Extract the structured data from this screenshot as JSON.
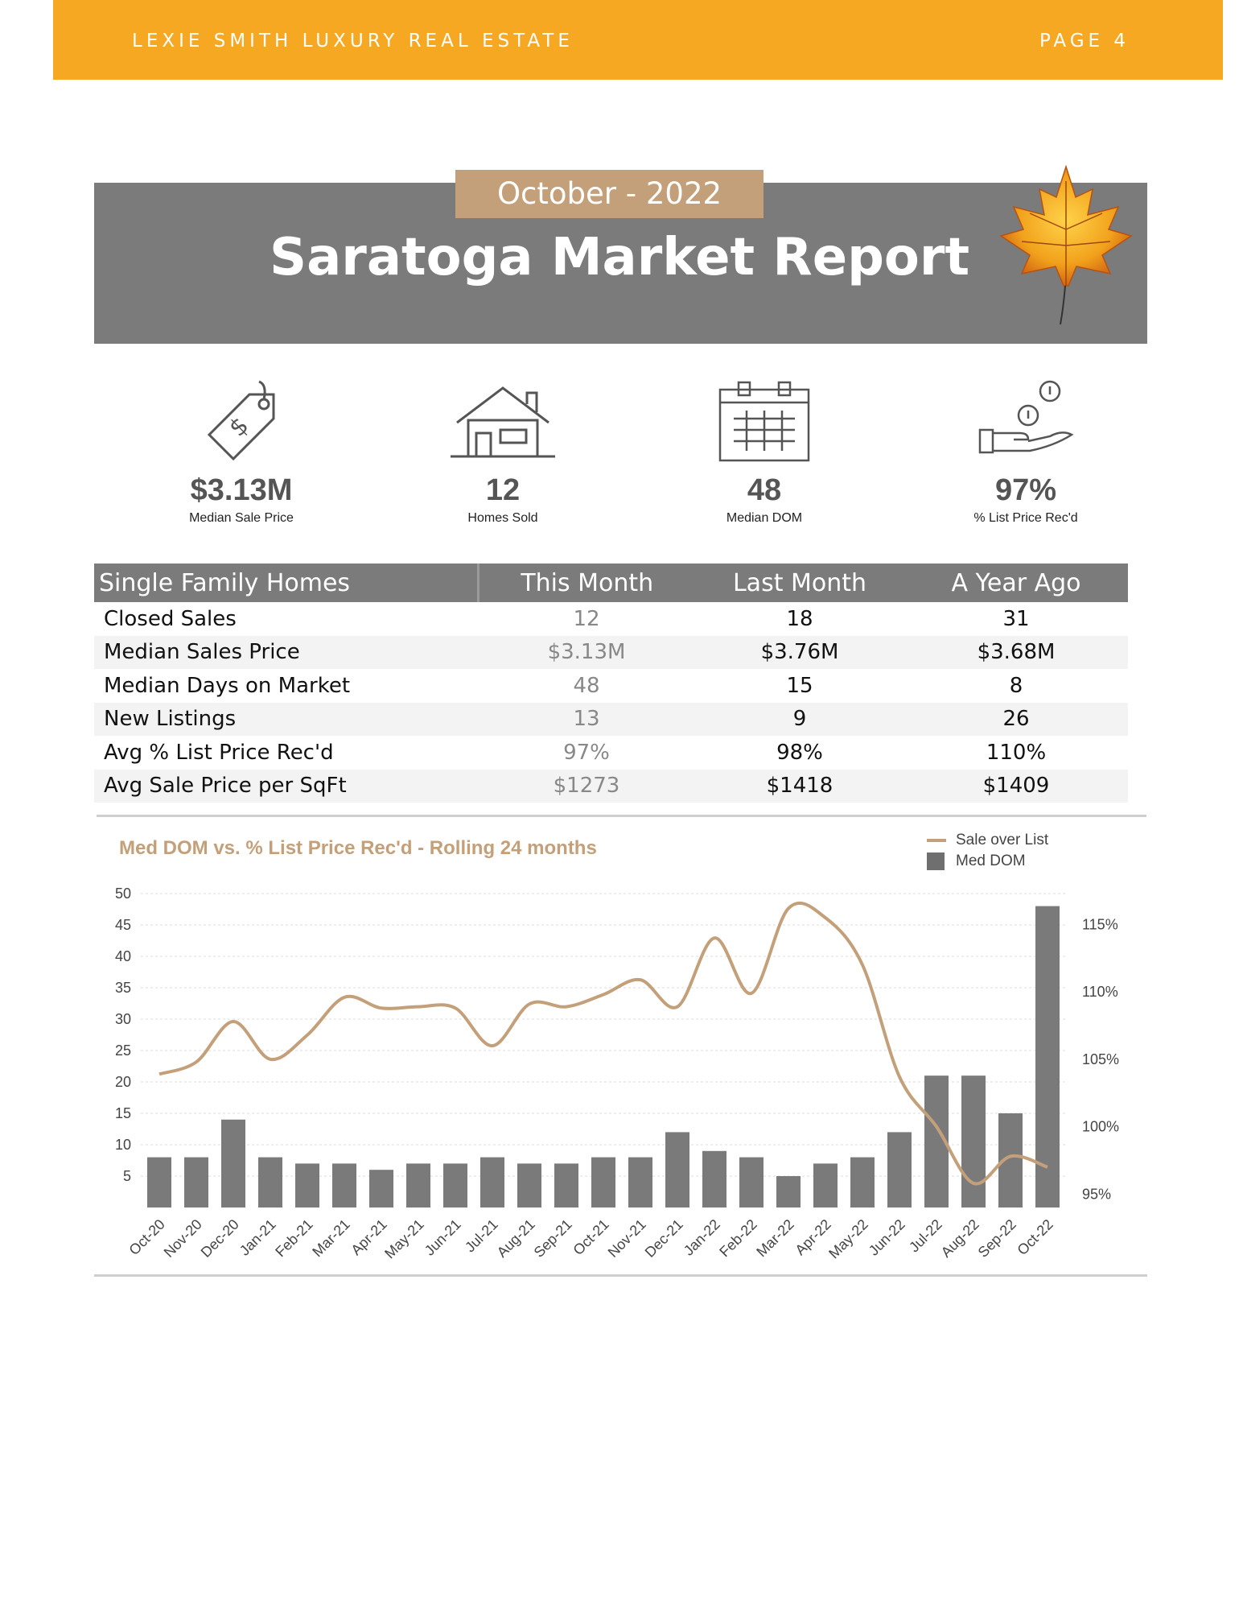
{
  "header": {
    "brand": "LEXIE SMITH LUXURY REAL ESTATE",
    "page": "PAGE 4"
  },
  "banner": {
    "date": "October - 2022",
    "title": "Saratoga Market Report"
  },
  "stats": [
    {
      "value": "$3.13M",
      "label": "Median Sale Price",
      "icon": "price-tag-icon"
    },
    {
      "value": "12",
      "label": "Homes Sold",
      "icon": "house-icon"
    },
    {
      "value": "48",
      "label": "Median DOM",
      "icon": "calendar-icon"
    },
    {
      "value": "97%",
      "label": "% List Price Rec'd",
      "icon": "hand-coins-icon"
    }
  ],
  "table": {
    "headers": [
      "Single Family Homes",
      "This Month",
      "Last Month",
      "A Year Ago"
    ],
    "rows": [
      [
        "Closed Sales",
        "12",
        "18",
        "31"
      ],
      [
        "Median Sales Price",
        "$3.13M",
        "$3.76M",
        "$3.68M"
      ],
      [
        "Median Days on Market",
        "48",
        "15",
        "8"
      ],
      [
        "New Listings",
        "13",
        "9",
        "26"
      ],
      [
        "Avg % List Price Rec'd",
        "97%",
        "98%",
        "110%"
      ],
      [
        "Avg Sale Price per SqFt",
        "$1273",
        "$1418",
        "$1409"
      ]
    ]
  },
  "colors": {
    "accent": "#f7a823",
    "tan": "#c4a07a",
    "gray": "#7b7b7b",
    "bar": "#7a7a7a"
  },
  "chart_data": {
    "type": "bar",
    "title": "Med DOM  vs. % List Price Rec'd - Rolling 24 months",
    "categories": [
      "Oct-20",
      "Nov-20",
      "Dec-20",
      "Jan-21",
      "Feb-21",
      "Mar-21",
      "Apr-21",
      "May-21",
      "Jun-21",
      "Jul-21",
      "Aug-21",
      "Sep-21",
      "Oct-21",
      "Nov-21",
      "Dec-21",
      "Jan-22",
      "Feb-22",
      "Mar-22",
      "Apr-22",
      "May-22",
      "Jun-22",
      "Jul-22",
      "Aug-22",
      "Sep-22",
      "Oct-22"
    ],
    "series": [
      {
        "name": "Med DOM",
        "type": "bar",
        "axis": "left",
        "values": [
          8,
          8,
          14,
          8,
          7,
          7,
          6,
          7,
          7,
          8,
          7,
          7,
          8,
          8,
          12,
          9,
          8,
          5,
          7,
          8,
          12,
          21,
          21,
          15,
          48
        ]
      },
      {
        "name": "Sale over List",
        "type": "line",
        "axis": "right",
        "values": [
          103.9,
          104.8,
          107.8,
          105.0,
          106.8,
          109.6,
          108.8,
          108.9,
          108.8,
          106.0,
          109.1,
          108.9,
          109.8,
          110.9,
          108.9,
          114.0,
          109.9,
          116.2,
          115.5,
          112.0,
          103.7,
          100.0,
          95.8,
          97.8,
          97.0
        ]
      }
    ],
    "left_axis": {
      "ticks": [
        "5",
        "10",
        "15",
        "20",
        "25",
        "30",
        "35",
        "40",
        "45",
        "50"
      ],
      "ylim": [
        0,
        50
      ]
    },
    "right_axis": {
      "ticks": [
        "95%",
        "100%",
        "105%",
        "110%",
        "115%"
      ],
      "ylim": [
        94,
        117.3
      ]
    },
    "legend": {
      "position": "top-right",
      "entries": [
        "Sale over List",
        "Med DOM"
      ]
    },
    "grid": true
  }
}
